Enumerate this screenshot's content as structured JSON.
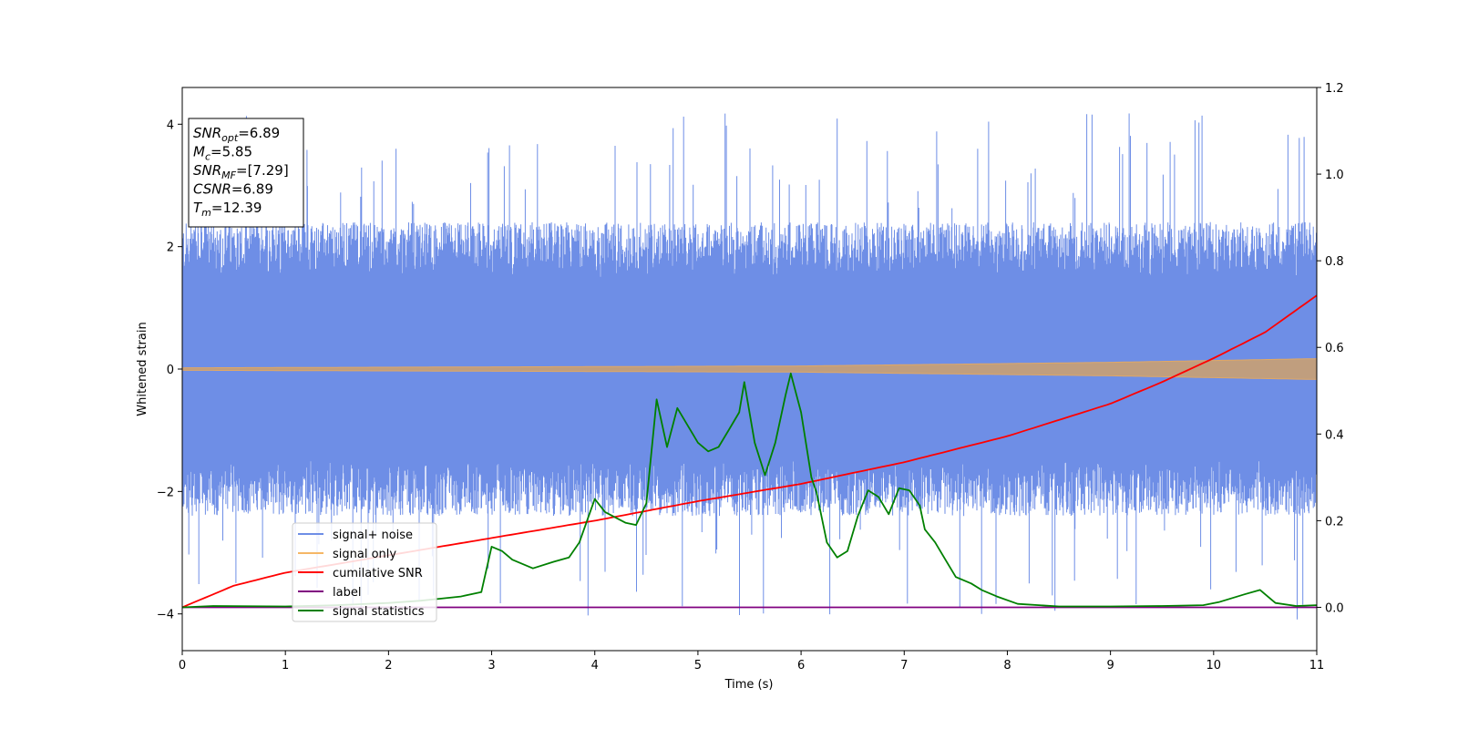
{
  "chart_data": {
    "type": "line",
    "xlabel": "Time (s)",
    "ylabel": "Whitened strain",
    "y2label": "",
    "xlim": [
      0,
      11
    ],
    "ylim": [
      -4.6,
      4.6
    ],
    "y2lim": [
      -0.1,
      1.2
    ],
    "xticks": [
      "0",
      "1",
      "2",
      "3",
      "4",
      "5",
      "6",
      "7",
      "8",
      "9",
      "10",
      "11"
    ],
    "yticks": [
      "−4",
      "−2",
      "0",
      "2",
      "4"
    ],
    "y2ticks": [
      "0.0",
      "0.2",
      "0.4",
      "0.6",
      "0.8",
      "1.0",
      "1.2"
    ],
    "grid": false,
    "legend_position": "lower-left",
    "annotation": {
      "lines": [
        {
          "sym": "SNR",
          "sub": "opt",
          "value": "=6.89"
        },
        {
          "sym": "M",
          "sub": "c",
          "value": "=5.85"
        },
        {
          "sym": "SNR",
          "sub": "MF",
          "value": "=[7.29]"
        },
        {
          "sym": "CSNR",
          "sub": "",
          "value": "=6.89"
        },
        {
          "sym": "T",
          "sub": "m",
          "value": "=12.39"
        }
      ]
    },
    "series": [
      {
        "name": "signal+ noise",
        "color": "#6e8ee6",
        "axis": "left",
        "description": "noise band",
        "band_half_width": 1.4,
        "spike_max": 4.2,
        "spike_min": -4.1
      },
      {
        "name": "signal only",
        "color": "#f5b766",
        "axis": "left",
        "envelope": [
          [
            0,
            0.02
          ],
          [
            6,
            0.05
          ],
          [
            9,
            0.11
          ],
          [
            11,
            0.17
          ]
        ]
      },
      {
        "name": "cumilative SNR",
        "color": "#ff0000",
        "axis": "right",
        "points": [
          [
            0,
            0.0
          ],
          [
            0.5,
            0.05
          ],
          [
            1,
            0.08
          ],
          [
            2,
            0.12
          ],
          [
            3,
            0.16
          ],
          [
            4,
            0.2
          ],
          [
            5,
            0.245
          ],
          [
            6,
            0.285
          ],
          [
            7,
            0.335
          ],
          [
            8,
            0.395
          ],
          [
            9,
            0.47
          ],
          [
            9.5,
            0.52
          ],
          [
            10,
            0.575
          ],
          [
            10.5,
            0.635
          ],
          [
            11,
            0.72
          ]
        ]
      },
      {
        "name": "label",
        "color": "#800080",
        "axis": "right",
        "points": [
          [
            0,
            0.0
          ],
          [
            11,
            0.0
          ]
        ]
      },
      {
        "name": "signal statistics",
        "color": "#008000",
        "axis": "right",
        "points": [
          [
            0,
            0.0
          ],
          [
            0.3,
            0.003
          ],
          [
            1,
            0.002
          ],
          [
            1.5,
            0.005
          ],
          [
            2,
            0.01
          ],
          [
            2.3,
            0.015
          ],
          [
            2.5,
            0.02
          ],
          [
            2.7,
            0.025
          ],
          [
            2.9,
            0.035
          ],
          [
            3.0,
            0.14
          ],
          [
            3.1,
            0.13
          ],
          [
            3.2,
            0.11
          ],
          [
            3.4,
            0.09
          ],
          [
            3.6,
            0.105
          ],
          [
            3.75,
            0.115
          ],
          [
            3.85,
            0.15
          ],
          [
            4.0,
            0.25
          ],
          [
            4.1,
            0.22
          ],
          [
            4.3,
            0.195
          ],
          [
            4.4,
            0.19
          ],
          [
            4.5,
            0.24
          ],
          [
            4.6,
            0.48
          ],
          [
            4.7,
            0.37
          ],
          [
            4.8,
            0.46
          ],
          [
            4.9,
            0.42
          ],
          [
            5.0,
            0.38
          ],
          [
            5.1,
            0.36
          ],
          [
            5.2,
            0.37
          ],
          [
            5.3,
            0.41
          ],
          [
            5.4,
            0.45
          ],
          [
            5.45,
            0.52
          ],
          [
            5.55,
            0.38
          ],
          [
            5.65,
            0.305
          ],
          [
            5.75,
            0.38
          ],
          [
            5.85,
            0.49
          ],
          [
            5.9,
            0.54
          ],
          [
            6.0,
            0.45
          ],
          [
            6.1,
            0.3
          ],
          [
            6.15,
            0.265
          ],
          [
            6.25,
            0.15
          ],
          [
            6.35,
            0.115
          ],
          [
            6.45,
            0.13
          ],
          [
            6.55,
            0.21
          ],
          [
            6.65,
            0.27
          ],
          [
            6.75,
            0.255
          ],
          [
            6.85,
            0.215
          ],
          [
            6.95,
            0.275
          ],
          [
            7.05,
            0.27
          ],
          [
            7.15,
            0.235
          ],
          [
            7.2,
            0.18
          ],
          [
            7.3,
            0.15
          ],
          [
            7.4,
            0.11
          ],
          [
            7.5,
            0.07
          ],
          [
            7.65,
            0.055
          ],
          [
            7.75,
            0.04
          ],
          [
            7.9,
            0.025
          ],
          [
            8.1,
            0.008
          ],
          [
            8.5,
            0.002
          ],
          [
            9.0,
            0.002
          ],
          [
            9.5,
            0.003
          ],
          [
            9.9,
            0.005
          ],
          [
            10.05,
            0.012
          ],
          [
            10.3,
            0.03
          ],
          [
            10.45,
            0.04
          ],
          [
            10.6,
            0.01
          ],
          [
            10.8,
            0.003
          ],
          [
            11,
            0.005
          ]
        ]
      }
    ]
  }
}
